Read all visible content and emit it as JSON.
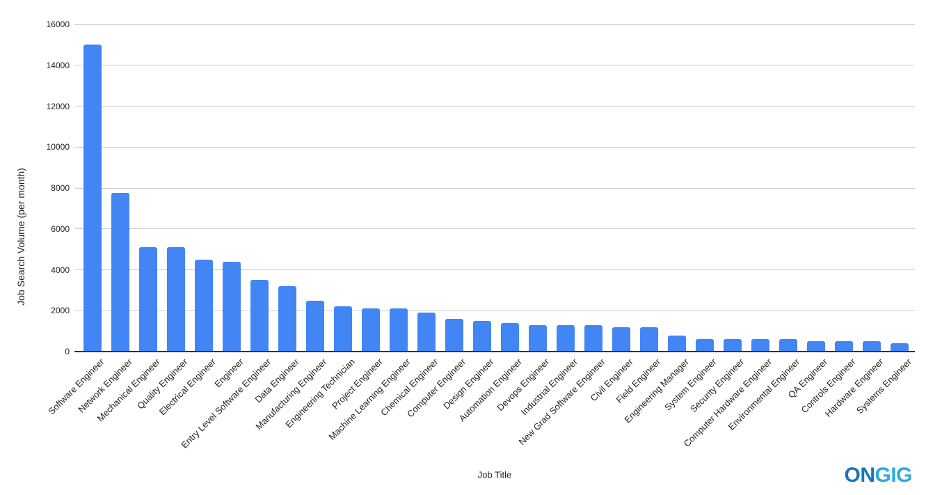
{
  "chart_data": {
    "type": "bar",
    "title": "",
    "xlabel": "Job Title",
    "ylabel": "Job Search Volume (per month)",
    "categories": [
      "Software Engineer",
      "Network Engineer",
      "Mechanical Engineer",
      "Quality Engineer",
      "Electrical Engineer",
      "Engineer",
      "Entry Level Software Engineer",
      "Data Engineer",
      "Manufacturing Engineer",
      "Engineering Technician",
      "Project Engineer",
      "Machine Learning Engineer",
      "Chemical Engineer",
      "Computer Engineer",
      "Design Engineer",
      "Automation Engineer",
      "Devops Engineer",
      "Industrial Engineer",
      "New Grad Software Engineer",
      "Civil Engineer",
      "Field Engineer",
      "Engineering Manager",
      "System Engineer",
      "Security Engineer",
      "Computer Hardware Engineer",
      "Environmental Engineer",
      "QA Engineer",
      "Controls Engineer",
      "Hardware Engineer",
      "Systems Engineer"
    ],
    "values": [
      15000,
      7750,
      5100,
      5100,
      4500,
      4400,
      3500,
      3200,
      2500,
      2200,
      2100,
      2100,
      1900,
      1600,
      1500,
      1400,
      1300,
      1300,
      1300,
      1200,
      1200,
      800,
      600,
      600,
      600,
      600,
      500,
      500,
      500,
      400
    ],
    "ylim": [
      0,
      16000
    ],
    "ytick_interval": 2000,
    "ytick_labels": [
      "0",
      "2000",
      "4000",
      "6000",
      "8000",
      "10000",
      "12000",
      "14000",
      "16000"
    ],
    "grid": true,
    "legend": "none",
    "bar_color": "#4285f4"
  },
  "branding": {
    "logo_part1": "ON",
    "logo_part2": "GIG",
    "logo_color1": "#1b75bc",
    "logo_color2": "#2da9e0"
  }
}
